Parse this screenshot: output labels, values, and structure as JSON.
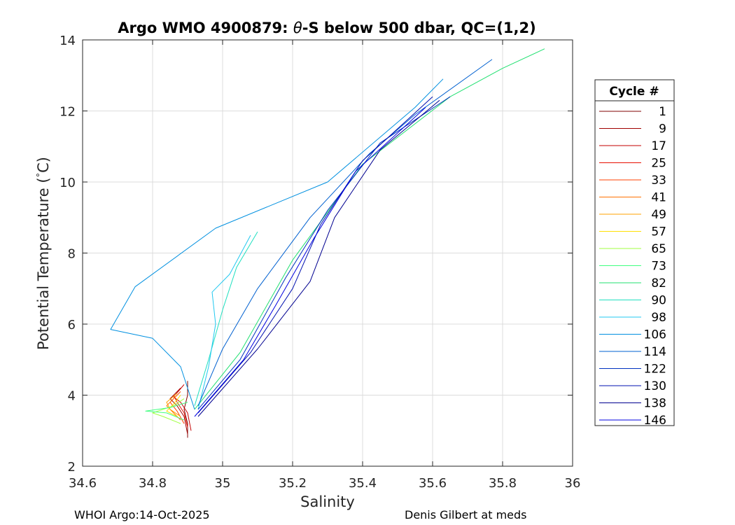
{
  "chart_data": {
    "type": "line",
    "title_parts": [
      "Argo WMO 4900879: ",
      "θ",
      "-S below 500 dbar,  QC=(1,2)"
    ],
    "xlabel": "Salinity",
    "ylabel_main": "Potential Temperature (",
    "ylabel_degree": "°",
    "ylabel_end": "C)",
    "xlim": [
      34.6,
      36
    ],
    "ylim": [
      2,
      14
    ],
    "xticks": [
      34.6,
      34.8,
      35,
      35.2,
      35.4,
      35.6,
      35.8,
      36
    ],
    "xtick_labels": [
      "34.6",
      "34.8",
      "35",
      "35.2",
      "35.4",
      "35.6",
      "35.8",
      "36"
    ],
    "yticks": [
      2,
      4,
      6,
      8,
      10,
      12,
      14
    ],
    "ytick_labels": [
      "2",
      "4",
      "6",
      "8",
      "10",
      "12",
      "14"
    ],
    "grid": true,
    "legend_title": "Cycle #",
    "legend_position": "right",
    "series": [
      {
        "name": "1",
        "color": "#800000",
        "values": [
          [
            34.9,
            2.8
          ],
          [
            34.9,
            3.2
          ],
          [
            34.89,
            3.6
          ],
          [
            34.9,
            4.0
          ],
          [
            34.9,
            4.4
          ]
        ]
      },
      {
        "name": "9",
        "color": "#a00000",
        "values": [
          [
            34.9,
            2.9
          ],
          [
            34.89,
            3.4
          ],
          [
            34.87,
            3.7
          ],
          [
            34.85,
            3.9
          ],
          [
            34.88,
            4.2
          ]
        ]
      },
      {
        "name": "17",
        "color": "#c40000",
        "values": [
          [
            34.91,
            3.0
          ],
          [
            34.9,
            3.5
          ],
          [
            34.88,
            3.8
          ],
          [
            34.86,
            3.95
          ],
          [
            34.89,
            4.3
          ]
        ]
      },
      {
        "name": "25",
        "color": "#e81000",
        "values": [
          [
            34.9,
            3.1
          ],
          [
            34.89,
            3.5
          ],
          [
            34.87,
            3.8
          ],
          [
            34.86,
            4.0
          ]
        ]
      },
      {
        "name": "33",
        "color": "#ff4000",
        "values": [
          [
            34.89,
            3.2
          ],
          [
            34.87,
            3.55
          ],
          [
            34.85,
            3.8
          ],
          [
            34.88,
            4.1
          ]
        ]
      },
      {
        "name": "41",
        "color": "#ff7000",
        "values": [
          [
            34.88,
            3.3
          ],
          [
            34.86,
            3.5
          ],
          [
            34.84,
            3.7
          ],
          [
            34.87,
            4.0
          ]
        ]
      },
      {
        "name": "49",
        "color": "#ffa000",
        "values": [
          [
            34.88,
            3.4
          ],
          [
            34.85,
            3.6
          ],
          [
            34.84,
            3.8
          ],
          [
            34.87,
            4.05
          ]
        ]
      },
      {
        "name": "57",
        "color": "#ffe000",
        "values": [
          [
            34.87,
            3.4
          ],
          [
            34.84,
            3.55
          ],
          [
            34.86,
            3.75
          ],
          [
            34.88,
            4.0
          ]
        ]
      },
      {
        "name": "65",
        "color": "#a0ff40",
        "values": [
          [
            34.88,
            3.2
          ],
          [
            34.83,
            3.4
          ],
          [
            34.8,
            3.5
          ],
          [
            34.86,
            3.7
          ],
          [
            34.89,
            3.9
          ]
        ]
      },
      {
        "name": "73",
        "color": "#40ff80",
        "values": [
          [
            34.89,
            3.3
          ],
          [
            34.84,
            3.5
          ],
          [
            34.78,
            3.55
          ],
          [
            34.85,
            3.65
          ],
          [
            34.9,
            3.8
          ]
        ]
      },
      {
        "name": "82",
        "color": "#20e070",
        "values": [
          [
            34.92,
            3.6
          ],
          [
            35.05,
            5.2
          ],
          [
            35.2,
            7.8
          ],
          [
            35.4,
            10.5
          ],
          [
            35.65,
            12.4
          ],
          [
            35.8,
            13.2
          ],
          [
            35.92,
            13.75
          ]
        ]
      },
      {
        "name": "90",
        "color": "#20e0c0",
        "values": [
          [
            34.92,
            3.7
          ],
          [
            34.96,
            5.0
          ],
          [
            35.0,
            6.4
          ],
          [
            35.04,
            7.6
          ],
          [
            35.1,
            8.6
          ]
        ]
      },
      {
        "name": "98",
        "color": "#20c8f0",
        "values": [
          [
            34.93,
            3.6
          ],
          [
            34.96,
            4.8
          ],
          [
            34.98,
            6.0
          ],
          [
            34.97,
            6.9
          ],
          [
            35.02,
            7.4
          ],
          [
            35.08,
            8.5
          ]
        ]
      },
      {
        "name": "106",
        "color": "#0090e0",
        "values": [
          [
            34.92,
            3.6
          ],
          [
            34.88,
            4.8
          ],
          [
            34.8,
            5.6
          ],
          [
            34.68,
            5.85
          ],
          [
            34.75,
            7.05
          ],
          [
            34.98,
            8.7
          ],
          [
            35.3,
            10.0
          ],
          [
            35.55,
            12.1
          ],
          [
            35.63,
            12.9
          ]
        ]
      },
      {
        "name": "114",
        "color": "#0060d0",
        "values": [
          [
            34.93,
            3.7
          ],
          [
            35.0,
            5.3
          ],
          [
            35.1,
            7.0
          ],
          [
            35.25,
            9.0
          ],
          [
            35.42,
            10.8
          ],
          [
            35.55,
            11.9
          ],
          [
            35.77,
            13.45
          ]
        ]
      },
      {
        "name": "122",
        "color": "#0030c0",
        "values": [
          [
            34.93,
            3.6
          ],
          [
            35.05,
            5.0
          ],
          [
            35.18,
            7.3
          ],
          [
            35.3,
            9.2
          ],
          [
            35.45,
            11.1
          ],
          [
            35.65,
            12.4
          ]
        ]
      },
      {
        "name": "130",
        "color": "#0010b0",
        "values": [
          [
            34.93,
            3.5
          ],
          [
            35.08,
            5.2
          ],
          [
            35.2,
            7.0
          ],
          [
            35.28,
            8.8
          ],
          [
            35.4,
            10.6
          ],
          [
            35.6,
            12.4
          ]
        ]
      },
      {
        "name": "138",
        "color": "#000090",
        "values": [
          [
            34.93,
            3.4
          ],
          [
            35.1,
            5.3
          ],
          [
            35.25,
            7.2
          ],
          [
            35.32,
            9.0
          ],
          [
            35.45,
            10.9
          ],
          [
            35.62,
            12.3
          ]
        ]
      },
      {
        "name": "146",
        "color": "#0000e0",
        "values": [
          [
            34.92,
            3.4
          ],
          [
            35.06,
            5.0
          ],
          [
            35.15,
            6.5
          ],
          [
            35.26,
            8.4
          ],
          [
            35.38,
            10.3
          ],
          [
            35.58,
            12.1
          ]
        ]
      }
    ]
  },
  "footer": {
    "left": "WHOI Argo:14-Oct-2025",
    "right": "Denis Gilbert at meds"
  }
}
